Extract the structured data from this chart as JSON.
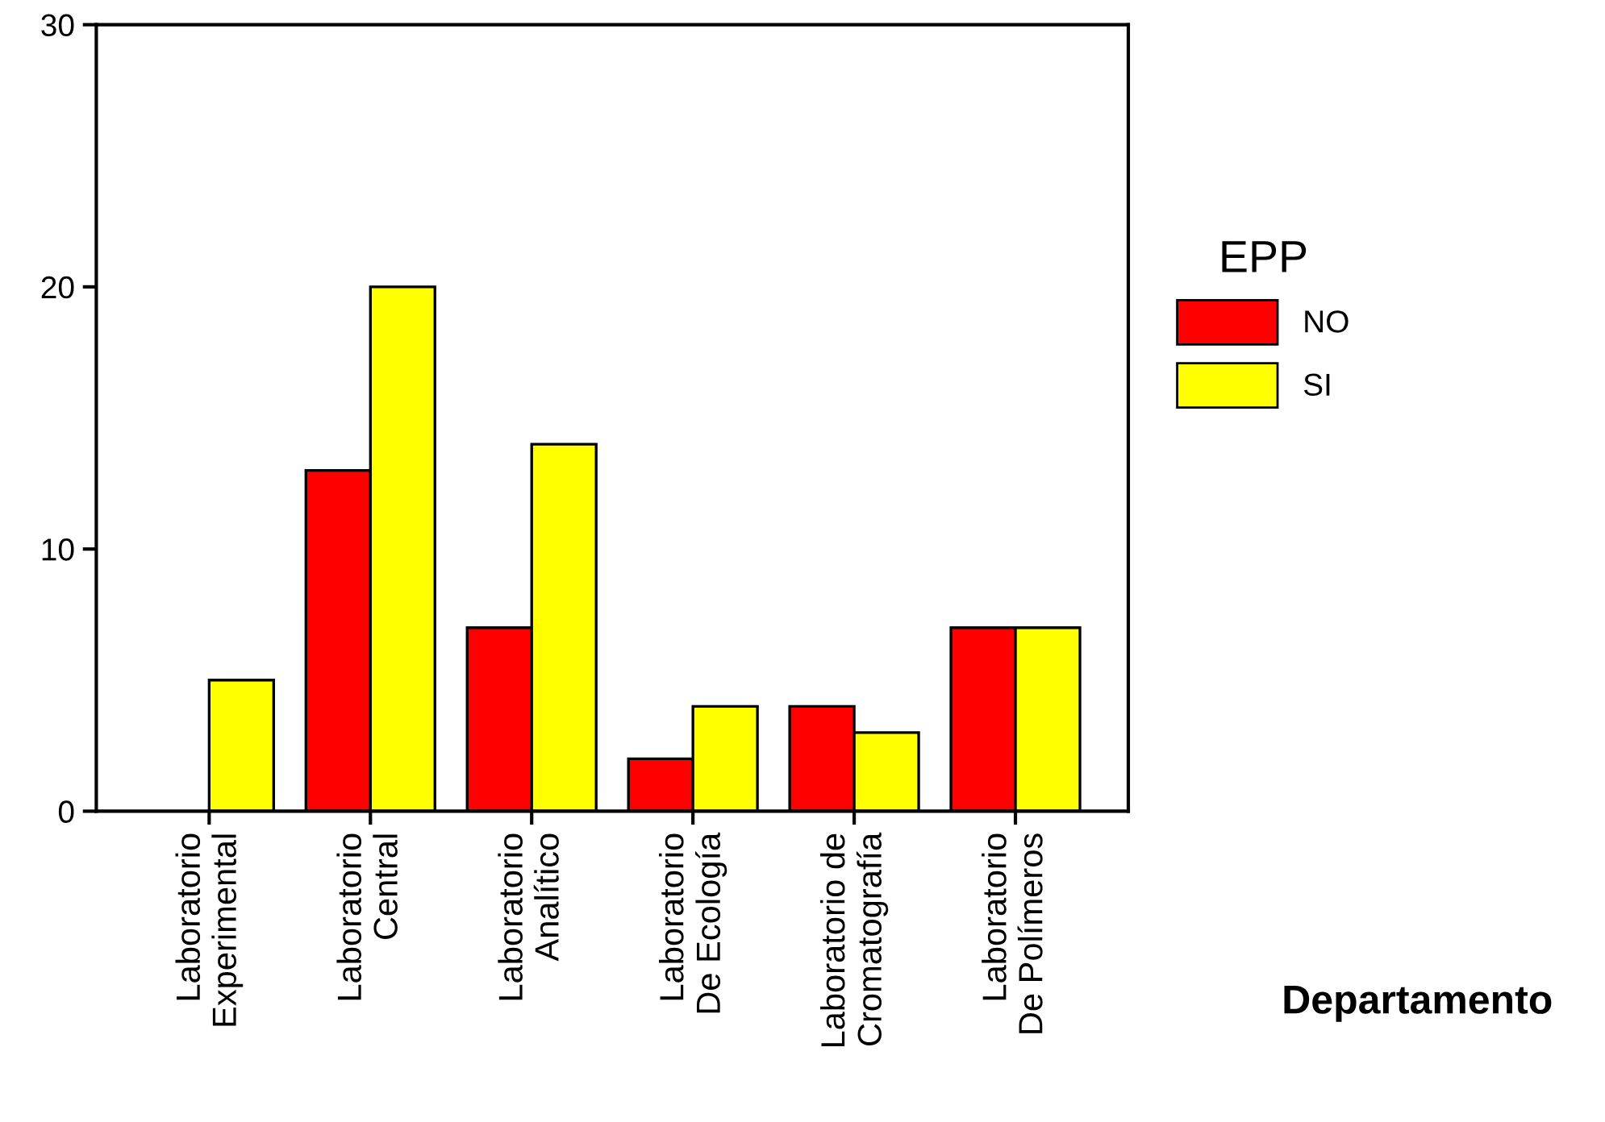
{
  "chart_data": {
    "type": "bar",
    "categories": [
      "Laboratorio\nExperimental",
      "Laboratorio\nCentral",
      "Laboratorio\nAnalítico",
      "Laboratorio\nDe Ecología",
      "Laboratorio de\nCromatografía",
      "Laboratorio\nDe Polímeros"
    ],
    "series": [
      {
        "name": "NO",
        "color": "#ff0000",
        "values": [
          null,
          13,
          7,
          2,
          4,
          7
        ]
      },
      {
        "name": "SI",
        "color": "#ffff00",
        "values": [
          5,
          20,
          14,
          4,
          3,
          7
        ]
      }
    ],
    "xlabel": "Departamento",
    "legend_title": "EPP",
    "legend": "right",
    "ylim": [
      0,
      30
    ],
    "yticks": [
      0,
      10,
      20,
      30
    ],
    "grid": false
  }
}
